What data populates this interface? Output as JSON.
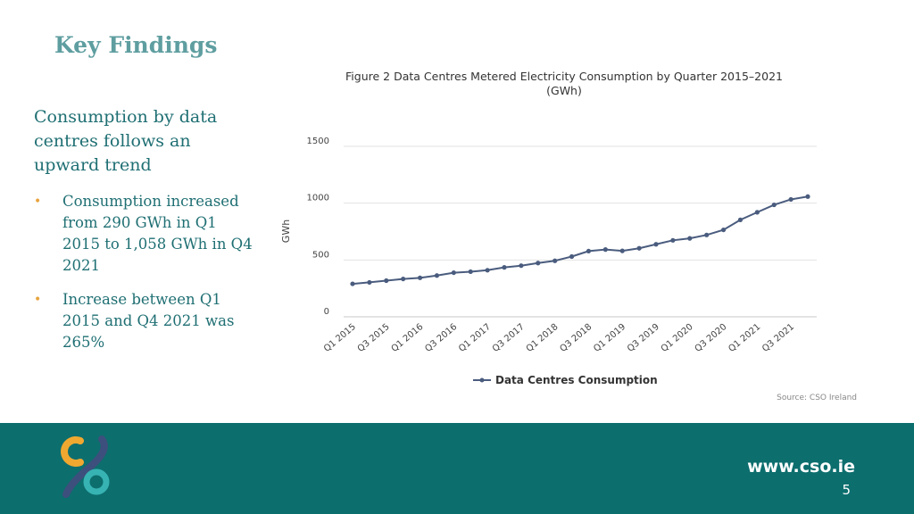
{
  "slide": {
    "title": "Key Findings",
    "subheading": "Consumption by data centres follows an upward trend",
    "bullets": [
      "Consumption increased from 290 GWh in Q1 2015 to 1,058 GWh in Q4 2021",
      "Increase between Q1 2015 and Q4 2021 was 265%"
    ]
  },
  "footer": {
    "url": "www.cso.ie",
    "page_number": "5",
    "logo_icon": "cso-logo-icon",
    "colors": {
      "background": "#0d6e6e",
      "logo_orange": "#f0a830",
      "logo_teal": "#37b3b3",
      "logo_navy": "#3d4f7c"
    }
  },
  "chart_data": {
    "type": "line",
    "title": "Figure 2 Data Centres Metered Electricity Consumption by Quarter 2015–2021",
    "subtitle": "(GWh)",
    "ylabel": "GWh",
    "xlabel": "",
    "ylim": [
      0,
      1500
    ],
    "yticks": [
      0,
      500,
      1000,
      1500
    ],
    "x": [
      "Q1 2015",
      "Q2 2015",
      "Q3 2015",
      "Q4 2015",
      "Q1 2016",
      "Q2 2016",
      "Q3 2016",
      "Q4 2016",
      "Q1 2017",
      "Q2 2017",
      "Q3 2017",
      "Q4 2017",
      "Q1 2018",
      "Q2 2018",
      "Q3 2018",
      "Q4 2018",
      "Q1 2019",
      "Q2 2019",
      "Q3 2019",
      "Q4 2019",
      "Q1 2020",
      "Q2 2020",
      "Q3 2020",
      "Q4 2020",
      "Q1 2021",
      "Q2 2021",
      "Q3 2021",
      "Q4 2021"
    ],
    "x_tick_labels": [
      "Q1 2015",
      "Q3 2015",
      "Q1 2016",
      "Q3 2016",
      "Q1 2017",
      "Q3 2017",
      "Q1 2018",
      "Q3 2018",
      "Q1 2019",
      "Q3 2019",
      "Q1 2020",
      "Q3 2020",
      "Q1 2021",
      "Q3 2021"
    ],
    "series": [
      {
        "name": "Data Centres Consumption",
        "color": "#4a5c7e",
        "values": [
          290,
          303,
          318,
          333,
          343,
          363,
          388,
          397,
          410,
          435,
          450,
          473,
          493,
          530,
          578,
          592,
          580,
          603,
          638,
          673,
          690,
          720,
          765,
          853,
          920,
          985,
          1033,
          1058
        ]
      }
    ],
    "grid": true,
    "legend": "bottom-center",
    "source": "Source: CSO Ireland"
  }
}
